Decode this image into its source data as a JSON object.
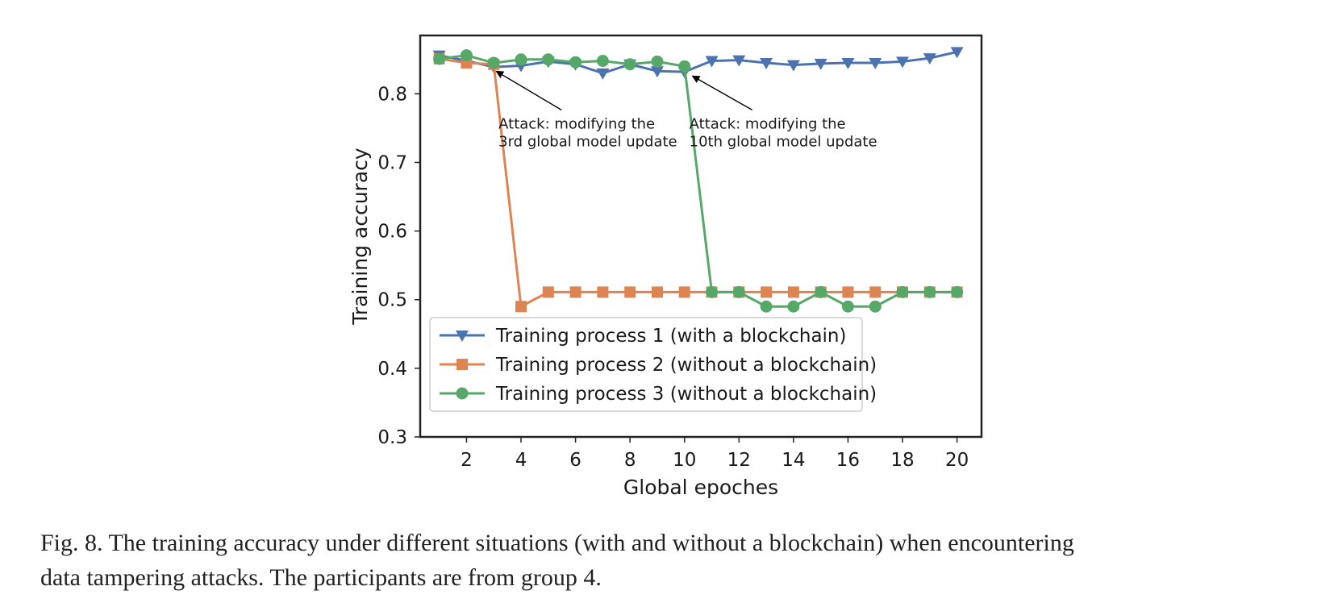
{
  "caption": {
    "line1": "Fig. 8.  The training accuracy under different situations (with and without a blockchain) when encountering",
    "line2": "data tampering attacks. The participants are from group 4."
  },
  "chart_data": {
    "type": "line",
    "xlabel": "Global epoches",
    "ylabel": "Training accuracy",
    "xlim": [
      0.3,
      20.9
    ],
    "ylim": [
      0.3,
      0.885
    ],
    "xticks": [
      2,
      4,
      6,
      8,
      10,
      12,
      14,
      16,
      18,
      20
    ],
    "yticks": [
      0.3,
      0.4,
      0.5,
      0.6,
      0.7,
      0.8
    ],
    "ytick_labels": [
      "0.3",
      "0.4",
      "0.5",
      "0.6",
      "0.7",
      "0.8"
    ],
    "grid": false,
    "legend_position": "lower-left",
    "x": [
      1,
      2,
      3,
      4,
      5,
      6,
      7,
      8,
      9,
      10,
      11,
      12,
      13,
      14,
      15,
      16,
      17,
      18,
      19,
      20
    ],
    "series": [
      {
        "name": "Training process 1 (with a blockchain)",
        "color": "#4c72b0",
        "marker": "triangle-down",
        "values": [
          0.856,
          0.848,
          0.839,
          0.841,
          0.847,
          0.843,
          0.83,
          0.843,
          0.833,
          0.832,
          0.848,
          0.849,
          0.845,
          0.842,
          0.844,
          0.845,
          0.845,
          0.847,
          0.852,
          0.861
        ]
      },
      {
        "name": "Training process 2 (without a blockchain)",
        "color": "#dd8452",
        "marker": "square",
        "values": [
          0.851,
          0.845,
          0.843,
          0.49,
          0.511,
          0.511,
          0.511,
          0.511,
          0.511,
          0.511,
          0.511,
          0.511,
          0.511,
          0.511,
          0.511,
          0.511,
          0.511,
          0.511,
          0.511,
          0.511
        ]
      },
      {
        "name": "Training process 3 (without a blockchain)",
        "color": "#55a868",
        "marker": "circle",
        "values": [
          0.851,
          0.856,
          0.845,
          0.85,
          0.85,
          0.846,
          0.848,
          0.843,
          0.847,
          0.84,
          0.511,
          0.511,
          0.49,
          0.49,
          0.511,
          0.49,
          0.49,
          0.511,
          0.511,
          0.511
        ]
      }
    ],
    "annotations": [
      {
        "lines": [
          "Attack: modifying the",
          "3rd global model update"
        ],
        "target": [
          3.0,
          0.84
        ],
        "text_at": [
          4.3,
          0.76
        ]
      },
      {
        "lines": [
          "Attack: modifying the",
          "10th global model update"
        ],
        "target": [
          10.2,
          0.833
        ],
        "text_at": [
          11.3,
          0.76
        ]
      }
    ]
  }
}
